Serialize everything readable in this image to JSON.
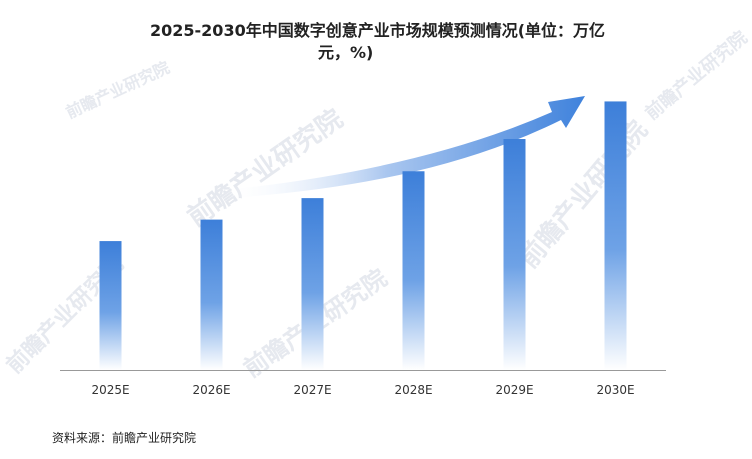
{
  "chart_data": {
    "type": "bar",
    "title_line1": "2025-2030年中国数字创意产业市场规模预测情况(单位：万亿",
    "title_line2": "元，%)",
    "categories": [
      "2025E",
      "2026E",
      "2027E",
      "2028E",
      "2029E",
      "2030E"
    ],
    "values": [
      4.8,
      5.6,
      6.4,
      7.4,
      8.6,
      10.0
    ],
    "ylim": [
      0,
      10.5
    ],
    "grid": false,
    "legend": "none",
    "bar_color": "#3d7fd9",
    "trend_arrow_color": "#5b93e0"
  },
  "source": "资料来源：前瞻产业研究院",
  "watermark": "前瞻产业研究院"
}
